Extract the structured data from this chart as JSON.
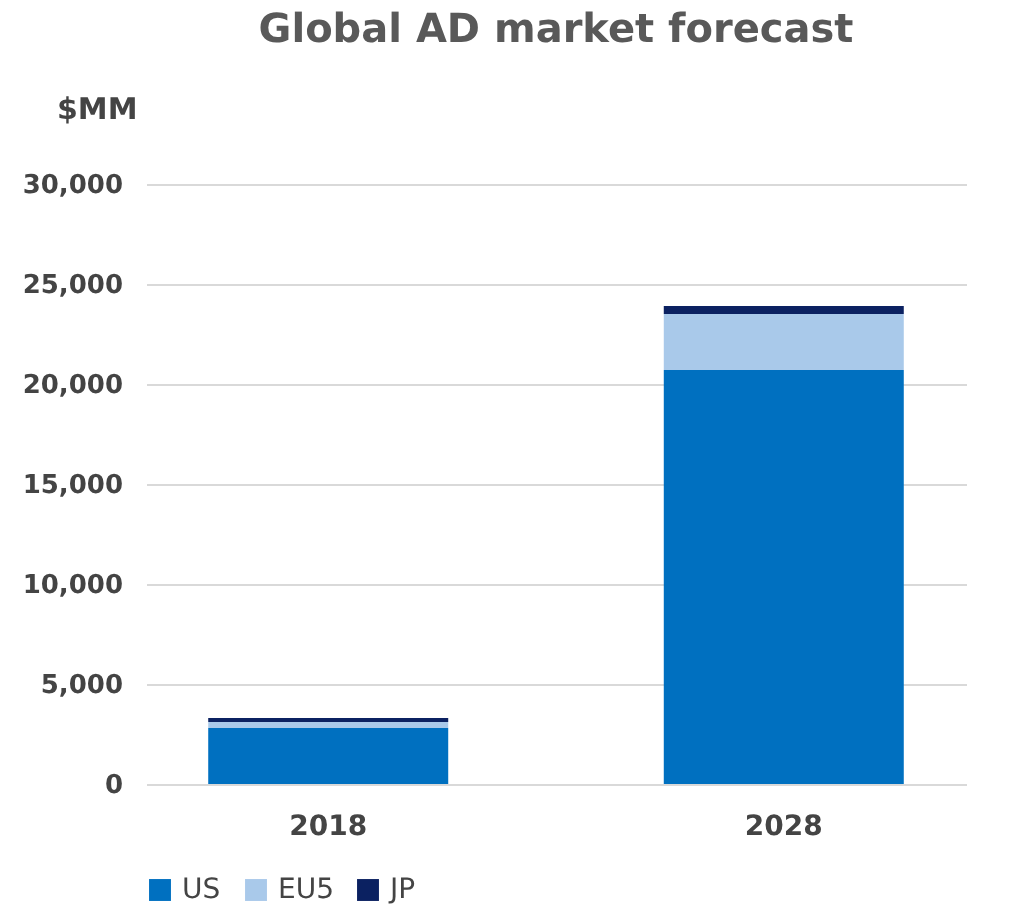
{
  "chart_data": {
    "type": "bar",
    "title": "Global AD market forecast",
    "ylabel": "$MM",
    "categories": [
      "2018",
      "2028"
    ],
    "stacked": true,
    "series": [
      {
        "name": "US",
        "color": "#0070c0",
        "values": [
          2800,
          20700
        ]
      },
      {
        "name": "EU5",
        "color": "#a9c9ea",
        "values": [
          300,
          2800
        ]
      },
      {
        "name": "JP",
        "color": "#0b2161",
        "values": [
          200,
          400
        ]
      }
    ],
    "ylim": [
      0,
      30000
    ],
    "yticks": [
      0,
      {
        "value": 5000,
        "label": "5,000"
      },
      {
        "value": 10000,
        "label": "10,000"
      },
      {
        "value": 15000,
        "label": "15,000"
      },
      {
        "value": 20000,
        "label": "20,000"
      },
      {
        "value": 25000,
        "label": "25,000"
      },
      {
        "value": 30000,
        "label": "30,000"
      }
    ],
    "grid": "y",
    "legend": "bottom"
  }
}
